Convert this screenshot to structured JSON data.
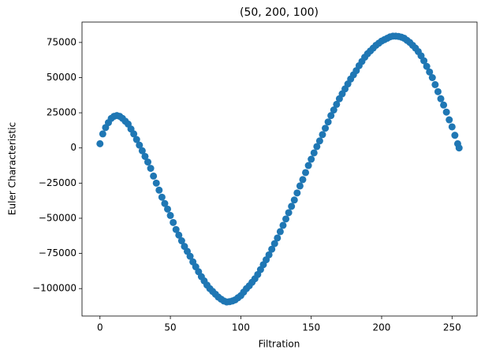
{
  "chart_data": {
    "type": "scatter",
    "title": "(50, 200, 100)",
    "x_label": "Filtration",
    "y_label": "Euler Characteristic",
    "color": "#1f77b4",
    "xlim": [
      -12.75,
      267.75
    ],
    "xticks": [
      0,
      50,
      100,
      150,
      200,
      250
    ],
    "ylim": [
      -119500,
      89500
    ],
    "yticks": [
      {
        "value": -100000,
        "label": "−100000"
      },
      {
        "value": -75000,
        "label": "−75000"
      },
      {
        "value": -50000,
        "label": "−50000"
      },
      {
        "value": -25000,
        "label": "−25000"
      },
      0,
      25000,
      50000,
      75000
    ],
    "x": [
      0,
      2,
      4,
      6,
      8,
      10,
      12,
      14,
      16,
      18,
      20,
      22,
      24,
      26,
      28,
      30,
      32,
      34,
      36,
      38,
      40,
      42,
      44,
      46,
      48,
      50,
      52,
      54,
      56,
      58,
      60,
      62,
      64,
      66,
      68,
      70,
      72,
      74,
      76,
      78,
      80,
      82,
      84,
      86,
      88,
      90,
      92,
      94,
      96,
      98,
      100,
      102,
      104,
      106,
      108,
      110,
      112,
      114,
      116,
      118,
      120,
      122,
      124,
      126,
      128,
      130,
      132,
      134,
      136,
      138,
      140,
      142,
      144,
      146,
      148,
      150,
      152,
      154,
      156,
      158,
      160,
      162,
      164,
      166,
      168,
      170,
      172,
      174,
      176,
      178,
      180,
      182,
      184,
      186,
      188,
      190,
      192,
      194,
      196,
      198,
      200,
      202,
      204,
      206,
      208,
      210,
      212,
      214,
      216,
      218,
      220,
      222,
      224,
      226,
      228,
      230,
      232,
      234,
      236,
      238,
      240,
      242,
      244,
      246,
      248,
      250,
      252,
      254,
      255
    ],
    "values": [
      3000,
      10000,
      14500,
      18000,
      21000,
      22500,
      23000,
      22500,
      21000,
      19000,
      17000,
      13500,
      10000,
      6000,
      2000,
      -2000,
      -6000,
      -10000,
      -14500,
      -20000,
      -25000,
      -30000,
      -35000,
      -39500,
      -43500,
      -48000,
      -53000,
      -58000,
      -62000,
      -66000,
      -70000,
      -73500,
      -77000,
      -81000,
      -84500,
      -88000,
      -91500,
      -94500,
      -97500,
      -100000,
      -102000,
      -104000,
      -106000,
      -107500,
      -108800,
      -109500,
      -109300,
      -108800,
      -108000,
      -106500,
      -105000,
      -102500,
      -100000,
      -98000,
      -95500,
      -93000,
      -90000,
      -86500,
      -83000,
      -79500,
      -76000,
      -72000,
      -68000,
      -64000,
      -59500,
      -55000,
      -50500,
      -46000,
      -41500,
      -37000,
      -32000,
      -27000,
      -22500,
      -17500,
      -12500,
      -8000,
      -3500,
      1000,
      5000,
      9500,
      14000,
      18500,
      23000,
      27000,
      31000,
      35000,
      38500,
      42000,
      45500,
      49000,
      52000,
      55000,
      58500,
      61500,
      64500,
      67000,
      69000,
      71000,
      73000,
      74500,
      76000,
      77000,
      78000,
      79000,
      79500,
      79500,
      79300,
      78800,
      78000,
      76500,
      75000,
      73000,
      71000,
      68500,
      65500,
      62000,
      58000,
      54000,
      50000,
      45000,
      40000,
      35000,
      30500,
      25500,
      20000,
      15000,
      9000,
      3000,
      0
    ]
  }
}
